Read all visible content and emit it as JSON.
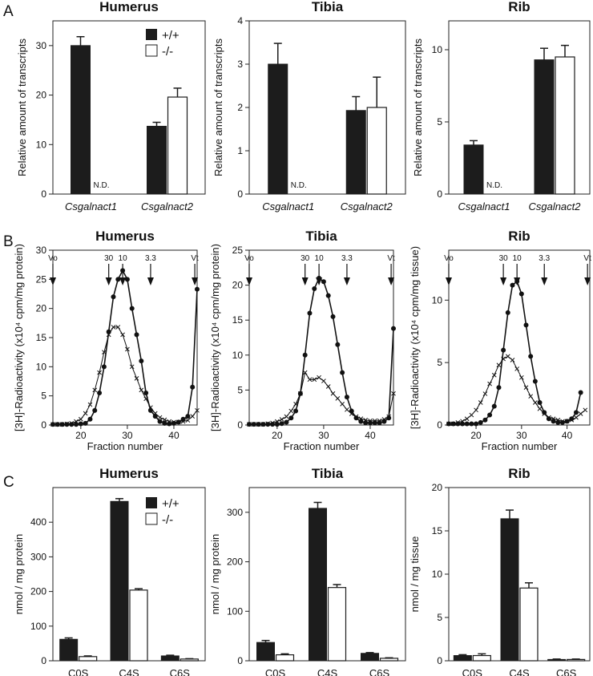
{
  "panels": {
    "a": "A",
    "b": "B",
    "c": "C"
  },
  "legend": {
    "wt": "+/+",
    "ko": "-/-"
  },
  "charts_a": [
    {
      "title": "Humerus",
      "ylabel": "Relative amount of transcripts",
      "ylim": [
        0,
        35
      ],
      "ticks": [
        0,
        10,
        20,
        30
      ],
      "categories": [
        "Csgalnact1",
        "Csgalnact2"
      ],
      "wt": [
        30.0,
        13.7
      ],
      "wt_err": [
        1.8,
        0.8
      ],
      "ko": [
        null,
        19.6
      ],
      "ko_err": [
        null,
        1.8
      ],
      "nd_label": "N.D."
    },
    {
      "title": "Tibia",
      "ylabel": "Relative amount of transcripts",
      "ylim": [
        0,
        4
      ],
      "ticks": [
        0,
        1,
        2,
        3,
        4
      ],
      "categories": [
        "Csgalnact1",
        "Csgalnact2"
      ],
      "wt": [
        3.0,
        1.93
      ],
      "wt_err": [
        0.48,
        0.32
      ],
      "ko": [
        null,
        2.0
      ],
      "ko_err": [
        null,
        0.7
      ],
      "nd_label": "N.D."
    },
    {
      "title": "Rib",
      "ylabel": "Relative amount of transcripts",
      "ylim": [
        0,
        12
      ],
      "ticks": [
        0,
        5,
        10
      ],
      "categories": [
        "Csgalnact1",
        "Csgalnact2"
      ],
      "wt": [
        3.4,
        9.3
      ],
      "wt_err": [
        0.3,
        0.8
      ],
      "ko": [
        null,
        9.5
      ],
      "ko_err": [
        null,
        0.8
      ],
      "nd_label": "N.D."
    }
  ],
  "chart_data": [
    {
      "type": "line",
      "title": "Humerus",
      "xlabel": "Fraction number",
      "ylabel": "[3H]-Radioactivity (x10⁴ cpm/mg protein)",
      "xlim": [
        14,
        45
      ],
      "ylim": [
        0,
        30
      ],
      "xticks": [
        20,
        30,
        40
      ],
      "yticks": [
        0,
        5,
        10,
        15,
        20,
        25,
        30
      ],
      "markers": [
        {
          "label": "Vo",
          "x": 14
        },
        {
          "label": "30",
          "x": 26
        },
        {
          "label": "10",
          "x": 29
        },
        {
          "label": "3.3",
          "x": 35
        },
        {
          "label": "Vt",
          "x": 44.5
        }
      ],
      "series": [
        {
          "marker": "dot",
          "x": [
            14,
            15,
            16,
            17,
            18,
            19,
            20,
            21,
            22,
            23,
            24,
            25,
            26,
            27,
            28,
            29,
            30,
            31,
            32,
            33,
            34,
            35,
            36,
            37,
            38,
            39,
            40,
            41,
            42,
            43,
            44,
            45
          ],
          "values": [
            0.1,
            0.1,
            0.1,
            0.1,
            0.1,
            0.1,
            0.2,
            0.3,
            1.0,
            2.5,
            5.5,
            10.0,
            16.0,
            22.0,
            25.0,
            26.5,
            25.0,
            20.0,
            15.5,
            11.0,
            5.5,
            2.5,
            1.5,
            0.6,
            0.3,
            0.2,
            0.3,
            0.5,
            1.0,
            1.5,
            6.5,
            23.3
          ]
        },
        {
          "marker": "cross",
          "x": [
            14,
            15,
            16,
            17,
            18,
            19,
            20,
            21,
            22,
            23,
            24,
            25,
            26,
            27,
            28,
            29,
            30,
            31,
            32,
            33,
            34,
            35,
            36,
            37,
            38,
            39,
            40,
            41,
            42,
            43,
            44,
            45
          ],
          "values": [
            0.1,
            0.1,
            0.1,
            0.2,
            0.3,
            0.6,
            1.0,
            2.0,
            3.5,
            6.0,
            9.0,
            12.5,
            15.5,
            16.8,
            16.8,
            15.5,
            13.0,
            10.0,
            8.0,
            6.0,
            4.5,
            3.0,
            2.0,
            1.3,
            0.9,
            0.6,
            0.5,
            0.5,
            0.6,
            0.8,
            1.5,
            2.5
          ]
        }
      ]
    },
    {
      "type": "line",
      "title": "Tibia",
      "xlabel": "Fraction number",
      "ylabel": "[3H]-Radioactivity (x10⁴ cpm/mg protein)",
      "xlim": [
        14,
        45
      ],
      "ylim": [
        0,
        25
      ],
      "xticks": [
        20,
        30,
        40
      ],
      "yticks": [
        0,
        5,
        10,
        15,
        20,
        25
      ],
      "markers": [
        {
          "label": "Vo",
          "x": 14
        },
        {
          "label": "30",
          "x": 26
        },
        {
          "label": "10",
          "x": 29
        },
        {
          "label": "3.3",
          "x": 35
        },
        {
          "label": "Vt",
          "x": 44.5
        }
      ],
      "series": [
        {
          "marker": "dot",
          "x": [
            14,
            15,
            16,
            17,
            18,
            19,
            20,
            21,
            22,
            23,
            24,
            25,
            26,
            27,
            28,
            29,
            30,
            31,
            32,
            33,
            34,
            35,
            36,
            37,
            38,
            39,
            40,
            41,
            42,
            43,
            44,
            45
          ],
          "values": [
            0.1,
            0.1,
            0.1,
            0.1,
            0.1,
            0.1,
            0.1,
            0.2,
            0.4,
            1.0,
            2.0,
            4.5,
            10.0,
            16.0,
            19.5,
            21.0,
            20.5,
            18.5,
            15.5,
            11.5,
            7.5,
            4.0,
            2.0,
            1.0,
            0.5,
            0.3,
            0.3,
            0.3,
            0.3,
            0.5,
            1.0,
            13.8
          ]
        },
        {
          "marker": "cross",
          "x": [
            14,
            15,
            16,
            17,
            18,
            19,
            20,
            21,
            22,
            23,
            24,
            25,
            26,
            27,
            28,
            29,
            30,
            31,
            32,
            33,
            34,
            35,
            36,
            37,
            38,
            39,
            40,
            41,
            42,
            43,
            44,
            45
          ],
          "values": [
            0.1,
            0.1,
            0.1,
            0.1,
            0.2,
            0.3,
            0.5,
            0.8,
            1.2,
            2.0,
            3.0,
            4.5,
            7.5,
            6.5,
            6.5,
            6.8,
            6.3,
            5.5,
            4.5,
            3.8,
            3.0,
            2.2,
            1.6,
            1.2,
            0.9,
            0.7,
            0.6,
            0.6,
            0.6,
            0.8,
            1.2,
            4.5
          ]
        }
      ]
    },
    {
      "type": "line",
      "title": "Rib",
      "xlabel": "Fraction number",
      "ylabel": "[3H]-Radioactivity (x10⁴ cpm/mg tissue)",
      "xlim": [
        14,
        45
      ],
      "ylim": [
        0,
        14
      ],
      "xticks": [
        20,
        30,
        40
      ],
      "yticks": [
        0,
        5,
        10
      ],
      "markers": [
        {
          "label": "Vo",
          "x": 14
        },
        {
          "label": "30",
          "x": 26
        },
        {
          "label": "10",
          "x": 29
        },
        {
          "label": "3.3",
          "x": 35
        },
        {
          "label": "Vt",
          "x": 44.5
        }
      ],
      "series": [
        {
          "marker": "dot",
          "x": [
            14,
            15,
            16,
            17,
            18,
            19,
            20,
            21,
            22,
            23,
            24,
            25,
            26,
            27,
            28,
            29,
            30,
            31,
            32,
            33,
            34,
            35,
            36,
            37,
            38,
            39,
            40,
            41,
            42,
            43
          ],
          "values": [
            0.1,
            0.1,
            0.1,
            0.1,
            0.1,
            0.1,
            0.1,
            0.2,
            0.4,
            0.8,
            1.5,
            3.0,
            6.0,
            9.0,
            11.2,
            11.5,
            10.5,
            8.0,
            5.5,
            3.5,
            1.8,
            1.0,
            0.5,
            0.3,
            0.2,
            0.2,
            0.3,
            0.5,
            1.0,
            2.6
          ]
        },
        {
          "marker": "cross",
          "x": [
            14,
            15,
            16,
            17,
            18,
            19,
            20,
            21,
            22,
            23,
            24,
            25,
            26,
            27,
            28,
            29,
            30,
            31,
            32,
            33,
            34,
            35,
            36,
            37,
            38,
            39,
            40,
            41,
            42,
            43,
            44
          ],
          "values": [
            0.1,
            0.1,
            0.2,
            0.3,
            0.5,
            0.8,
            1.2,
            1.8,
            2.5,
            3.3,
            4.0,
            4.8,
            5.3,
            5.5,
            5.2,
            4.5,
            3.8,
            3.0,
            2.3,
            1.8,
            1.3,
            0.9,
            0.6,
            0.5,
            0.4,
            0.3,
            0.3,
            0.4,
            0.6,
            0.9,
            1.2
          ]
        }
      ]
    }
  ],
  "charts_c": [
    {
      "title": "Humerus",
      "ylabel": "nmol / mg protein",
      "ylim": [
        0,
        500
      ],
      "ticks": [
        0,
        100,
        200,
        300,
        400
      ],
      "categories": [
        "C0S",
        "C4S",
        "C6S"
      ],
      "wt": [
        62,
        460,
        14
      ],
      "wt_err": [
        4,
        8,
        2
      ],
      "ko": [
        12,
        204,
        5
      ],
      "ko_err": [
        2,
        4,
        1
      ]
    },
    {
      "title": "Tibia",
      "ylabel": "nmol / mg protein",
      "ylim": [
        0,
        350
      ],
      "ticks": [
        0,
        100,
        200,
        300
      ],
      "categories": [
        "C0S",
        "C4S",
        "C6S"
      ],
      "wt": [
        37,
        308,
        15
      ],
      "wt_err": [
        4,
        12,
        1.5
      ],
      "ko": [
        12,
        148,
        5
      ],
      "ko_err": [
        2,
        6,
        1
      ]
    },
    {
      "title": "Rib",
      "ylabel": "nmol / mg tissue",
      "ylim": [
        0,
        20
      ],
      "ticks": [
        0,
        5,
        10,
        15,
        20
      ],
      "categories": [
        "C0S",
        "C4S",
        "C6S"
      ],
      "wt": [
        0.6,
        16.4,
        0.15
      ],
      "wt_err": [
        0.1,
        1.0,
        0.05
      ],
      "ko": [
        0.6,
        8.4,
        0.15
      ],
      "ko_err": [
        0.2,
        0.6,
        0.05
      ]
    }
  ]
}
